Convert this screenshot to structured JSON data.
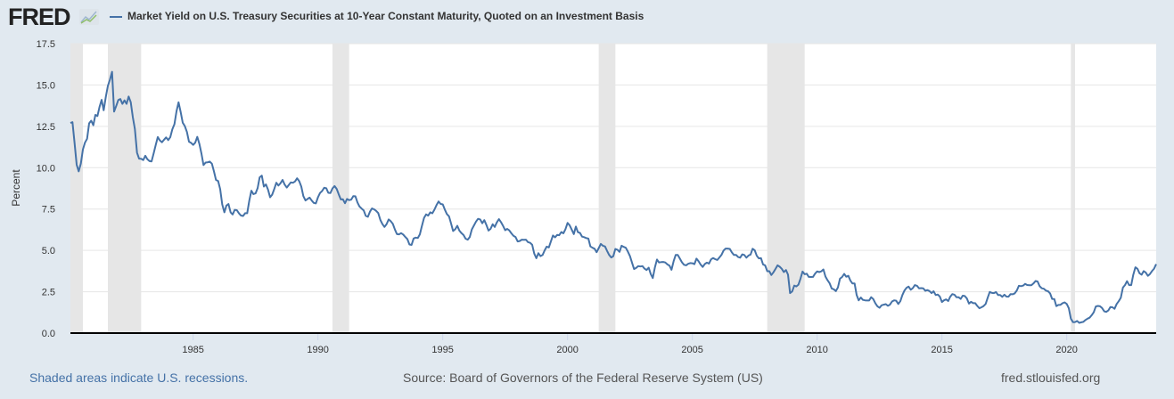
{
  "header": {
    "logo": "FRED",
    "title": "Market Yield on U.S. Treasury Securities at 10-Year Constant Maturity, Quoted on an Investment Basis"
  },
  "footer": {
    "recession_note": "Shaded areas indicate U.S. recessions.",
    "source": "Source: Board of Governors of the Federal Reserve System (US)",
    "site": "fred.stlouisfed.org"
  },
  "colors": {
    "line": "#4572a7",
    "recession": "#e6e6e6",
    "background": "#e1e9f0",
    "plot": "#ffffff"
  },
  "chart_data": {
    "type": "line",
    "title": "Market Yield on U.S. Treasury Securities at 10-Year Constant Maturity, Quoted on an Investment Basis",
    "xlabel": "",
    "ylabel": "Percent",
    "ylim": [
      0,
      17.5
    ],
    "xlim": [
      "1980-02",
      "2023-08"
    ],
    "grid": true,
    "legend": "top-left",
    "y_ticks": [
      "0.0",
      "2.5",
      "5.0",
      "7.5",
      "10.0",
      "12.5",
      "15.0",
      "17.5"
    ],
    "x_ticks": [
      "1985",
      "1990",
      "1995",
      "2000",
      "2005",
      "2010",
      "2015",
      "2020"
    ],
    "recessions": [
      [
        "1980-02",
        "1980-07"
      ],
      [
        "1981-08",
        "1982-11"
      ],
      [
        "1990-08",
        "1991-03"
      ],
      [
        "2001-04",
        "2001-11"
      ],
      [
        "2008-01",
        "2009-06"
      ],
      [
        "2020-03",
        "2020-04"
      ]
    ],
    "series": [
      {
        "name": "Market Yield on U.S. Treasury Securities at 10-Year Constant Maturity, Quoted on an Investment Basis",
        "start": "1980-02",
        "frequency": "monthly",
        "values": [
          12.7,
          12.75,
          11.47,
          10.18,
          9.78,
          10.25,
          11.1,
          11.51,
          11.75,
          12.68,
          12.84,
          12.57,
          13.19,
          13.12,
          13.68,
          14.1,
          13.47,
          14.28,
          14.94,
          15.32,
          15.8,
          13.39,
          13.72,
          14.09,
          14.15,
          13.86,
          14.07,
          13.86,
          14.3,
          13.95,
          13.06,
          12.34,
          10.91,
          10.55,
          10.54,
          10.46,
          10.72,
          10.51,
          10.4,
          10.38,
          10.85,
          11.38,
          11.85,
          11.65,
          11.54,
          11.69,
          11.83,
          11.67,
          11.84,
          12.32,
          12.63,
          13.41,
          13.95,
          13.36,
          12.72,
          12.52,
          12.16,
          11.57,
          11.5,
          11.38,
          11.51,
          11.86,
          11.43,
          10.85,
          10.16,
          10.31,
          10.33,
          10.37,
          10.24,
          9.78,
          9.26,
          9.19,
          8.7,
          7.78,
          7.3,
          7.71,
          7.8,
          7.3,
          7.17,
          7.45,
          7.43,
          7.25,
          7.11,
          7.08,
          7.25,
          7.25,
          8.02,
          8.61,
          8.4,
          8.45,
          8.76,
          9.42,
          9.52,
          8.86,
          8.99,
          8.67,
          8.21,
          8.37,
          8.72,
          9.09,
          8.92,
          9.06,
          9.26,
          8.98,
          8.8,
          8.96,
          9.11,
          9.09,
          9.17,
          9.36,
          9.18,
          8.86,
          8.28,
          8.02,
          8.11,
          8.19,
          8.01,
          7.87,
          7.84,
          8.21,
          8.47,
          8.59,
          8.79,
          8.76,
          8.48,
          8.47,
          8.75,
          8.89,
          8.72,
          8.39,
          8.08,
          8.09,
          7.85,
          8.11,
          8.04,
          8.07,
          8.28,
          8.27,
          7.9,
          7.65,
          7.53,
          7.42,
          7.09,
          7.03,
          7.34,
          7.54,
          7.48,
          7.39,
          7.26,
          6.84,
          6.59,
          6.42,
          6.59,
          6.87,
          6.77,
          6.6,
          6.26,
          5.98,
          5.97,
          6.04,
          5.96,
          5.81,
          5.68,
          5.36,
          5.33,
          5.72,
          5.77,
          5.75,
          5.97,
          6.48,
          6.97,
          7.18,
          7.1,
          7.3,
          7.24,
          7.46,
          7.74,
          7.96,
          7.81,
          7.78,
          7.47,
          7.2,
          7.06,
          6.63,
          6.17,
          6.28,
          6.49,
          6.2,
          6.04,
          5.93,
          5.71,
          5.65,
          5.81,
          6.27,
          6.51,
          6.74,
          6.91,
          6.87,
          6.64,
          6.83,
          6.53,
          6.2,
          6.3,
          6.58,
          6.42,
          6.69,
          6.89,
          6.71,
          6.49,
          6.22,
          6.3,
          6.21,
          6.03,
          5.88,
          5.81,
          5.54,
          5.57,
          5.65,
          5.64,
          5.65,
          5.5,
          5.46,
          5.34,
          4.81,
          4.53,
          4.83,
          4.65,
          4.72,
          5.0,
          5.23,
          5.18,
          5.54,
          5.9,
          5.79,
          5.94,
          5.92,
          6.11,
          6.03,
          6.28,
          6.66,
          6.52,
          6.26,
          5.99,
          6.44,
          6.1,
          6.05,
          5.83,
          5.8,
          5.74,
          5.72,
          5.24,
          5.16,
          5.1,
          4.89,
          5.14,
          5.39,
          5.28,
          5.24,
          4.97,
          4.73,
          4.57,
          4.65,
          5.09,
          5.04,
          4.91,
          5.28,
          5.21,
          5.16,
          4.93,
          4.65,
          4.26,
          3.87,
          3.94,
          4.05,
          4.03,
          4.05,
          3.9,
          3.81,
          3.96,
          3.57,
          3.33,
          3.98,
          4.45,
          4.27,
          4.29,
          4.3,
          4.27,
          4.15,
          4.08,
          3.83,
          4.35,
          4.72,
          4.73,
          4.5,
          4.28,
          4.13,
          4.1,
          4.19,
          4.23,
          4.22,
          4.17,
          4.5,
          4.34,
          4.14,
          4.0,
          4.18,
          4.26,
          4.2,
          4.46,
          4.54,
          4.47,
          4.42,
          4.57,
          4.72,
          4.99,
          5.11,
          5.11,
          5.09,
          4.88,
          4.72,
          4.73,
          4.6,
          4.56,
          4.76,
          4.72,
          4.56,
          4.69,
          4.75,
          5.1,
          5.0,
          4.67,
          4.52,
          4.53,
          4.15,
          4.1,
          3.74,
          3.74,
          3.51,
          3.68,
          3.88,
          4.1,
          4.01,
          3.89,
          3.69,
          3.81,
          3.53,
          2.42,
          2.52,
          2.87,
          2.82,
          2.93,
          3.29,
          3.72,
          3.56,
          3.59,
          3.4,
          3.39,
          3.4,
          3.59,
          3.73,
          3.69,
          3.73,
          3.85,
          3.42,
          3.2,
          3.01,
          2.7,
          2.65,
          2.54,
          2.76,
          3.29,
          3.39,
          3.58,
          3.41,
          3.46,
          3.17,
          3.0,
          3.0,
          2.3,
          1.98,
          2.15,
          2.01,
          1.98,
          1.97,
          1.97,
          2.17,
          2.05,
          1.8,
          1.62,
          1.53,
          1.68,
          1.72,
          1.75,
          1.65,
          1.72,
          1.91,
          1.98,
          1.96,
          1.76,
          1.93,
          2.3,
          2.58,
          2.74,
          2.81,
          2.62,
          2.72,
          2.9,
          2.86,
          2.71,
          2.72,
          2.71,
          2.56,
          2.6,
          2.54,
          2.42,
          2.53,
          2.3,
          2.33,
          2.21,
          1.88,
          1.98,
          2.04,
          1.94,
          2.2,
          2.36,
          2.32,
          2.17,
          2.17,
          2.07,
          2.26,
          2.24,
          2.09,
          1.78,
          1.89,
          1.81,
          1.81,
          1.64,
          1.5,
          1.56,
          1.63,
          1.76,
          2.14,
          2.49,
          2.43,
          2.42,
          2.48,
          2.3,
          2.3,
          2.19,
          2.32,
          2.21,
          2.2,
          2.36,
          2.35,
          2.4,
          2.58,
          2.86,
          2.84,
          2.87,
          2.98,
          2.91,
          2.89,
          2.89,
          3.0,
          3.15,
          3.12,
          2.83,
          2.71,
          2.68,
          2.57,
          2.53,
          2.4,
          2.07,
          2.06,
          1.63,
          1.7,
          1.71,
          1.81,
          1.86,
          1.76,
          1.5,
          0.87,
          0.66,
          0.67,
          0.73,
          0.62,
          0.65,
          0.68,
          0.79,
          0.87,
          0.93,
          1.08,
          1.26,
          1.61,
          1.64,
          1.62,
          1.52,
          1.32,
          1.28,
          1.37,
          1.58,
          1.56,
          1.47,
          1.76,
          1.93,
          2.13,
          2.75,
          2.9,
          3.14,
          2.9,
          2.9,
          3.52,
          3.98,
          3.89,
          3.62,
          3.53,
          3.75,
          3.66,
          3.46,
          3.57,
          3.75,
          3.9,
          4.17
        ]
      }
    ]
  }
}
